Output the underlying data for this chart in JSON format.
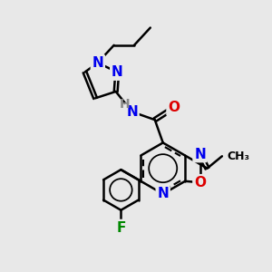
{
  "bg_color": "#e8e8e8",
  "bond_color": "#000000",
  "bond_width": 1.8,
  "atom_colors": {
    "N": "#0000ee",
    "O": "#dd0000",
    "F": "#008800",
    "H": "#888888",
    "C": "#000000"
  },
  "font_size": 11,
  "font_size_small": 9,
  "font_size_methyl": 9
}
